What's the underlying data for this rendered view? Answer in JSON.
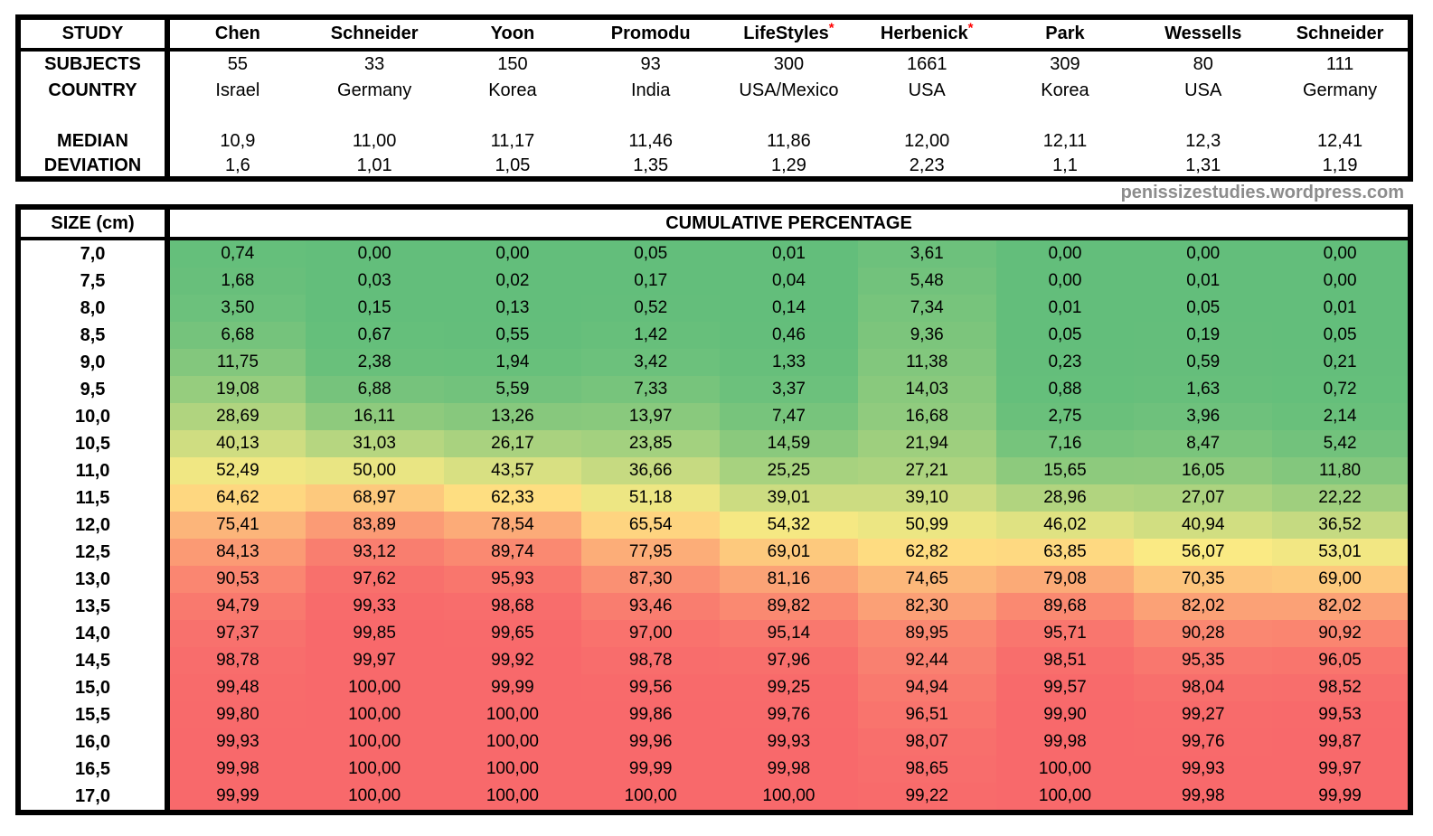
{
  "studies_table": {
    "corner_label": "STUDY",
    "row_labels": {
      "subjects": "SUBJECTS",
      "country": "COUNTRY",
      "median": "MEDIAN",
      "deviation": "DEVIATION"
    },
    "studies": [
      {
        "name": "Chen",
        "asterisk": false,
        "subjects": "55",
        "country": "Israel",
        "median": "10,9",
        "deviation": "1,6"
      },
      {
        "name": "Schneider",
        "asterisk": false,
        "subjects": "33",
        "country": "Germany",
        "median": "11,00",
        "deviation": "1,01"
      },
      {
        "name": "Yoon",
        "asterisk": false,
        "subjects": "150",
        "country": "Korea",
        "median": "11,17",
        "deviation": "1,05"
      },
      {
        "name": "Promodu",
        "asterisk": false,
        "subjects": "93",
        "country": "India",
        "median": "11,46",
        "deviation": "1,35"
      },
      {
        "name": "LifeStyles",
        "asterisk": true,
        "subjects": "300",
        "country": "USA/Mexico",
        "median": "11,86",
        "deviation": "1,29"
      },
      {
        "name": "Herbenick",
        "asterisk": true,
        "subjects": "1661",
        "country": "USA",
        "median": "12,00",
        "deviation": "2,23"
      },
      {
        "name": "Park",
        "asterisk": false,
        "subjects": "309",
        "country": "Korea",
        "median": "12,11",
        "deviation": "1,1"
      },
      {
        "name": "Wessells",
        "asterisk": false,
        "subjects": "80",
        "country": "USA",
        "median": "12,3",
        "deviation": "1,31"
      },
      {
        "name": "Schneider",
        "asterisk": false,
        "subjects": "111",
        "country": "Germany",
        "median": "12,41",
        "deviation": "1,19"
      }
    ]
  },
  "watermark": {
    "text": "penissizestudies.wordpress.com",
    "color": "#8C8C8C"
  },
  "chart_data": {
    "type": "heatmap",
    "title": "CUMULATIVE PERCENTAGE",
    "row_label_header": "SIZE (cm)",
    "columns": [
      "Chen",
      "Schneider",
      "Yoon",
      "Promodu",
      "LifeStyles",
      "Herbenick",
      "Park",
      "Wessells",
      "Schneider"
    ],
    "rows": [
      "7,0",
      "7,5",
      "8,0",
      "8,5",
      "9,0",
      "9,5",
      "10,0",
      "10,5",
      "11,0",
      "11,5",
      "12,0",
      "12,5",
      "13,0",
      "13,5",
      "14,0",
      "14,5",
      "15,0",
      "15,5",
      "16,0",
      "16,5",
      "17,0"
    ],
    "values": [
      [
        "0,74",
        "0,00",
        "0,00",
        "0,05",
        "0,01",
        "3,61",
        "0,00",
        "0,00",
        "0,00"
      ],
      [
        "1,68",
        "0,03",
        "0,02",
        "0,17",
        "0,04",
        "5,48",
        "0,00",
        "0,01",
        "0,00"
      ],
      [
        "3,50",
        "0,15",
        "0,13",
        "0,52",
        "0,14",
        "7,34",
        "0,01",
        "0,05",
        "0,01"
      ],
      [
        "6,68",
        "0,67",
        "0,55",
        "1,42",
        "0,46",
        "9,36",
        "0,05",
        "0,19",
        "0,05"
      ],
      [
        "11,75",
        "2,38",
        "1,94",
        "3,42",
        "1,33",
        "11,38",
        "0,23",
        "0,59",
        "0,21"
      ],
      [
        "19,08",
        "6,88",
        "5,59",
        "7,33",
        "3,37",
        "14,03",
        "0,88",
        "1,63",
        "0,72"
      ],
      [
        "28,69",
        "16,11",
        "13,26",
        "13,97",
        "7,47",
        "16,68",
        "2,75",
        "3,96",
        "2,14"
      ],
      [
        "40,13",
        "31,03",
        "26,17",
        "23,85",
        "14,59",
        "21,94",
        "7,16",
        "8,47",
        "5,42"
      ],
      [
        "52,49",
        "50,00",
        "43,57",
        "36,66",
        "25,25",
        "27,21",
        "15,65",
        "16,05",
        "11,80"
      ],
      [
        "64,62",
        "68,97",
        "62,33",
        "51,18",
        "39,01",
        "39,10",
        "28,96",
        "27,07",
        "22,22"
      ],
      [
        "75,41",
        "83,89",
        "78,54",
        "65,54",
        "54,32",
        "50,99",
        "46,02",
        "40,94",
        "36,52"
      ],
      [
        "84,13",
        "93,12",
        "89,74",
        "77,95",
        "69,01",
        "62,82",
        "63,85",
        "56,07",
        "53,01"
      ],
      [
        "90,53",
        "97,62",
        "95,93",
        "87,30",
        "81,16",
        "74,65",
        "79,08",
        "70,35",
        "69,00"
      ],
      [
        "94,79",
        "99,33",
        "98,68",
        "93,46",
        "89,82",
        "82,30",
        "89,68",
        "82,02",
        "82,02"
      ],
      [
        "97,37",
        "99,85",
        "99,65",
        "97,00",
        "95,14",
        "89,95",
        "95,71",
        "90,28",
        "90,92"
      ],
      [
        "98,78",
        "99,97",
        "99,92",
        "98,78",
        "97,96",
        "92,44",
        "98,51",
        "95,35",
        "96,05"
      ],
      [
        "99,48",
        "100,00",
        "99,99",
        "99,56",
        "99,25",
        "94,94",
        "99,57",
        "98,04",
        "98,52"
      ],
      [
        "99,80",
        "100,00",
        "100,00",
        "99,86",
        "99,76",
        "96,51",
        "99,90",
        "99,27",
        "99,53"
      ],
      [
        "99,93",
        "100,00",
        "100,00",
        "99,96",
        "99,93",
        "98,07",
        "99,98",
        "99,76",
        "99,87"
      ],
      [
        "99,98",
        "100,00",
        "100,00",
        "99,99",
        "99,98",
        "98,65",
        "100,00",
        "99,93",
        "99,97"
      ],
      [
        "99,99",
        "100,00",
        "100,00",
        "100,00",
        "100,00",
        "99,22",
        "100,00",
        "99,98",
        "99,99"
      ]
    ],
    "color_scale": {
      "min_value": 0,
      "mid_value": 58,
      "max_value": 100,
      "min_color": "#63BE7B",
      "mid_color": "#FFEB84",
      "max_color": "#F8696B"
    },
    "asterisk_color": "#FF0000",
    "grid": false,
    "legend": false
  }
}
